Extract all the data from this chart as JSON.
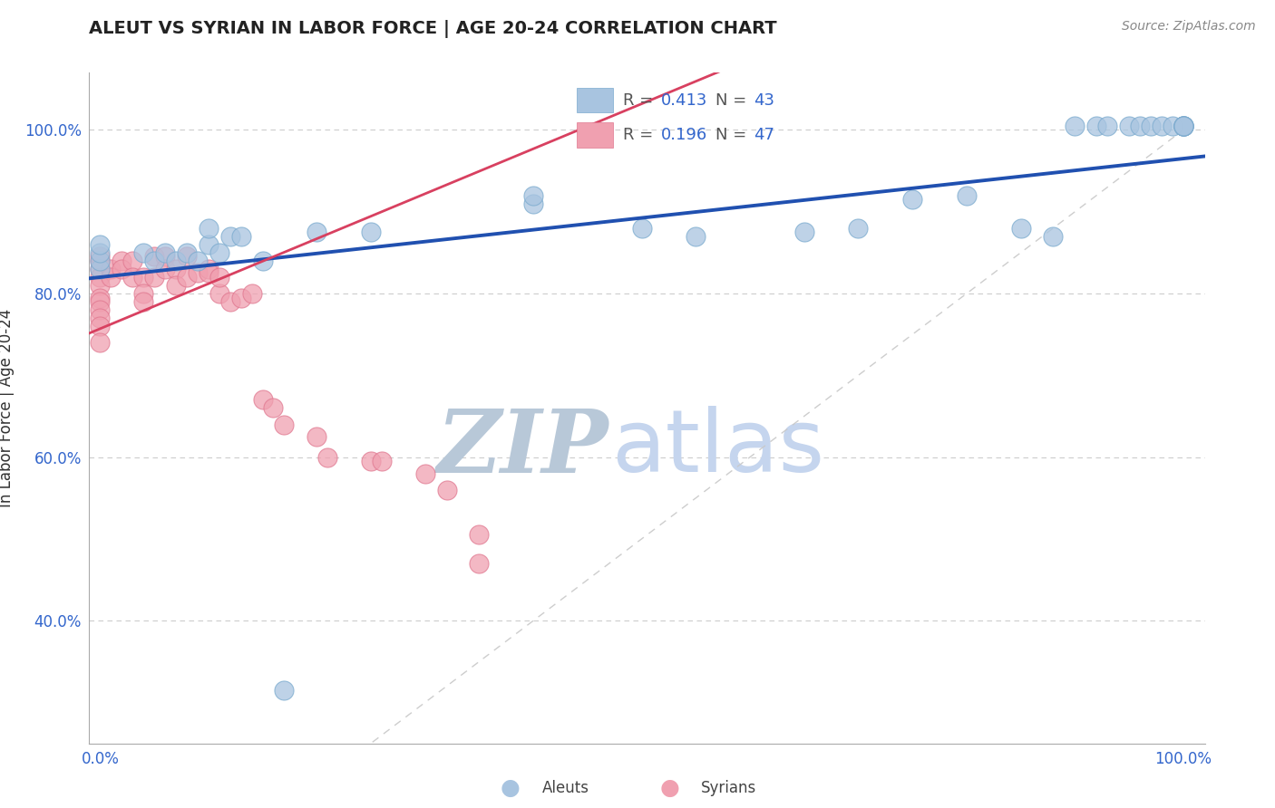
{
  "title": "ALEUT VS SYRIAN IN LABOR FORCE | AGE 20-24 CORRELATION CHART",
  "source_text": "Source: ZipAtlas.com",
  "ylabel": "In Labor Force | Age 20-24",
  "xlim": [
    -0.01,
    1.02
  ],
  "ylim": [
    0.25,
    1.07
  ],
  "xticks": [
    0.0,
    1.0
  ],
  "xticklabels": [
    "0.0%",
    "100.0%"
  ],
  "yticks": [
    0.4,
    0.6,
    0.8,
    1.0
  ],
  "yticklabels": [
    "40.0%",
    "60.0%",
    "80.0%",
    "100.0%"
  ],
  "aleut_color": "#a8c4e0",
  "aleut_edge_color": "#7aaace",
  "syrian_color": "#f0a0b0",
  "syrian_edge_color": "#e07890",
  "aleut_R": 0.413,
  "aleut_N": 43,
  "syrian_R": 0.196,
  "syrian_N": 47,
  "bg_color": "#ffffff",
  "blue_line_color": "#2050b0",
  "pink_line_color": "#d84060",
  "diag_color": "#c8c8c8",
  "grid_color": "#cccccc",
  "aleuts_label": "Aleuts",
  "syrians_label": "Syrians",
  "legend_R_color": "#3366cc",
  "legend_N_color": "#3366cc",
  "tick_color": "#3366cc",
  "title_color": "#222222",
  "source_color": "#888888",
  "ylabel_color": "#333333",
  "aleut_line_intercept": 0.82,
  "aleut_line_slope": 0.145,
  "syrian_line_intercept": 0.757,
  "syrian_line_slope": 0.55,
  "aleut_x": [
    0.0,
    0.0,
    0.0,
    0.0,
    0.04,
    0.05,
    0.06,
    0.07,
    0.08,
    0.09,
    0.1,
    0.1,
    0.11,
    0.12,
    0.13,
    0.15,
    0.17,
    0.2,
    0.25,
    0.4,
    0.4,
    0.5,
    0.55,
    0.65,
    0.7,
    0.75,
    0.8,
    0.85,
    0.88,
    0.9,
    0.92,
    0.93,
    0.95,
    0.96,
    0.97,
    0.98,
    0.99,
    1.0,
    1.0,
    1.0,
    1.0,
    1.0,
    1.0
  ],
  "aleut_y": [
    0.83,
    0.84,
    0.85,
    0.86,
    0.85,
    0.84,
    0.85,
    0.84,
    0.85,
    0.84,
    0.86,
    0.88,
    0.85,
    0.87,
    0.87,
    0.84,
    0.315,
    0.875,
    0.875,
    0.91,
    0.92,
    0.88,
    0.87,
    0.875,
    0.88,
    0.915,
    0.92,
    0.88,
    0.87,
    1.005,
    1.005,
    1.005,
    1.005,
    1.005,
    1.005,
    1.005,
    1.005,
    1.005,
    1.005,
    1.005,
    1.005,
    1.005,
    1.005
  ],
  "syrian_x": [
    0.0,
    0.0,
    0.0,
    0.0,
    0.0,
    0.0,
    0.0,
    0.0,
    0.0,
    0.0,
    0.0,
    0.01,
    0.01,
    0.02,
    0.02,
    0.03,
    0.03,
    0.04,
    0.04,
    0.04,
    0.05,
    0.05,
    0.06,
    0.06,
    0.07,
    0.07,
    0.08,
    0.08,
    0.09,
    0.1,
    0.1,
    0.11,
    0.11,
    0.12,
    0.13,
    0.14,
    0.15,
    0.16,
    0.17,
    0.2,
    0.21,
    0.25,
    0.26,
    0.3,
    0.32,
    0.35,
    0.35
  ],
  "syrian_y": [
    0.84,
    0.845,
    0.83,
    0.82,
    0.81,
    0.795,
    0.79,
    0.78,
    0.77,
    0.76,
    0.74,
    0.83,
    0.82,
    0.84,
    0.83,
    0.84,
    0.82,
    0.82,
    0.8,
    0.79,
    0.845,
    0.82,
    0.845,
    0.83,
    0.83,
    0.81,
    0.845,
    0.82,
    0.825,
    0.83,
    0.825,
    0.8,
    0.82,
    0.79,
    0.795,
    0.8,
    0.67,
    0.66,
    0.64,
    0.625,
    0.6,
    0.595,
    0.595,
    0.58,
    0.56,
    0.505,
    0.47
  ],
  "watermark_zip_color": "#b8c8d8",
  "watermark_atlas_color": "#c5d5ee"
}
